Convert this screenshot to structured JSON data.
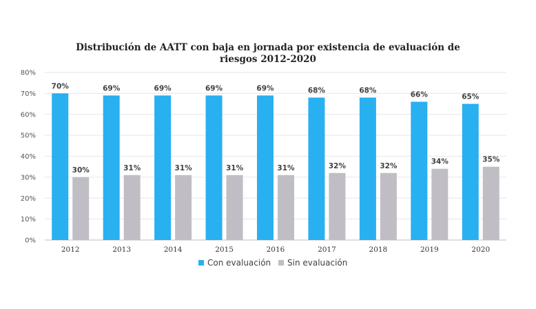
{
  "chart_data": {
    "type": "bar",
    "title_line1": "Distribución de AATT con baja en jornada por existencia de evaluación de",
    "title_line2": "riesgos 2012-2020",
    "categories": [
      "2012",
      "2013",
      "2014",
      "2015",
      "2016",
      "2017",
      "2018",
      "2019",
      "2020"
    ],
    "series": [
      {
        "name": "Con evaluación",
        "color": "#29b0f0",
        "values": [
          70,
          69,
          69,
          69,
          69,
          68,
          68,
          66,
          65
        ],
        "labels": [
          "70%",
          "69%",
          "69%",
          "69%",
          "69%",
          "68%",
          "68%",
          "66%",
          "65%"
        ]
      },
      {
        "name": "Sin evaluación",
        "color": "#c0bec4",
        "values": [
          30,
          31,
          31,
          31,
          31,
          32,
          32,
          34,
          35
        ],
        "labels": [
          "30%",
          "31%",
          "31%",
          "31%",
          "31%",
          "32%",
          "32%",
          "34%",
          "35%"
        ]
      }
    ],
    "yticks": [
      "0%",
      "10%",
      "20%",
      "30%",
      "40%",
      "50%",
      "60%",
      "70%",
      "80%"
    ],
    "ylim": [
      0,
      80
    ],
    "grid": true,
    "legend_position": "bottom"
  }
}
